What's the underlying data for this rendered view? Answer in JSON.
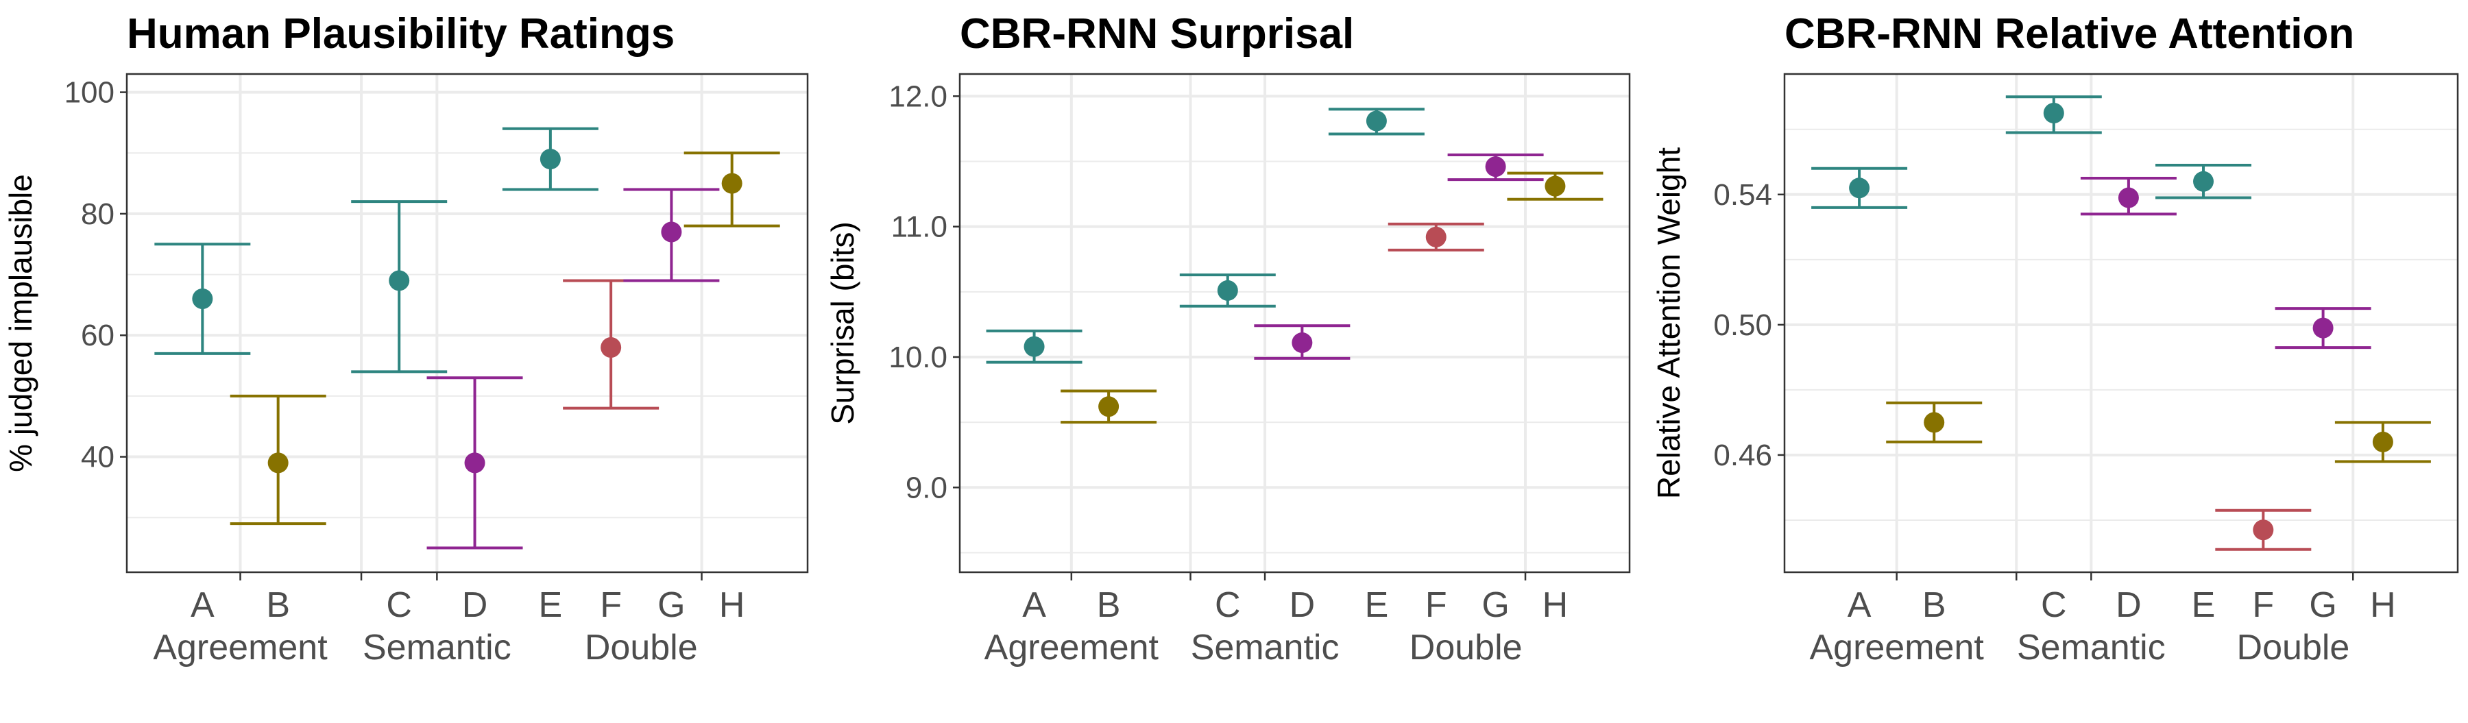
{
  "colors": {
    "A": "#2e8580",
    "B": "#877200",
    "C": "#2e8580",
    "D": "#8f2591",
    "E": "#2e8580",
    "F": "#b84c55",
    "G": "#8f2591",
    "H": "#877200",
    "grid": "#ebebeb",
    "panel_border": "#333333",
    "tick_text": "#4d4d4d"
  },
  "chart_data": [
    {
      "type": "scatter",
      "title": "Human Plausibility Ratings",
      "ylabel": "% judged implausible",
      "ylim": [
        21,
        103
      ],
      "yticks": [
        40,
        60,
        80,
        100
      ],
      "yticklabels": [
        "40",
        "60",
        "80",
        "100"
      ],
      "categories": [
        "A",
        "B",
        "C",
        "D",
        "E",
        "F",
        "G",
        "H"
      ],
      "groups": [
        {
          "label": "Agreement",
          "members": [
            "A",
            "B"
          ]
        },
        {
          "label": "Semantic",
          "members": [
            "C",
            "D"
          ]
        },
        {
          "label": "Double",
          "members": [
            "E",
            "F",
            "G",
            "H"
          ]
        }
      ],
      "points": [
        {
          "category": "A",
          "value": 66,
          "lower": 57,
          "upper": 75
        },
        {
          "category": "B",
          "value": 39,
          "lower": 29,
          "upper": 50
        },
        {
          "category": "C",
          "value": 69,
          "lower": 54,
          "upper": 82
        },
        {
          "category": "D",
          "value": 39,
          "lower": 25,
          "upper": 53
        },
        {
          "category": "E",
          "value": 89,
          "lower": 84,
          "upper": 94
        },
        {
          "category": "F",
          "value": 58,
          "lower": 48,
          "upper": 69
        },
        {
          "category": "G",
          "value": 77,
          "lower": 69,
          "upper": 84
        },
        {
          "category": "H",
          "value": 85,
          "lower": 78,
          "upper": 90
        }
      ],
      "grid": true,
      "legend": "none"
    },
    {
      "type": "scatter",
      "title": "CBR-RNN Surprisal",
      "ylabel": "Surprisal (bits)",
      "ylim": [
        8.35,
        12.17
      ],
      "yticks": [
        9.0,
        10.0,
        11.0,
        12.0
      ],
      "yticklabels": [
        "9.0",
        "10.0",
        "11.0",
        "12.0"
      ],
      "categories": [
        "A",
        "B",
        "C",
        "D",
        "E",
        "F",
        "G",
        "H"
      ],
      "groups": [
        {
          "label": "Agreement",
          "members": [
            "A",
            "B"
          ]
        },
        {
          "label": "Semantic",
          "members": [
            "C",
            "D"
          ]
        },
        {
          "label": "Double",
          "members": [
            "E",
            "F",
            "G",
            "H"
          ]
        }
      ],
      "points": [
        {
          "category": "A",
          "value": 10.08,
          "lower": 9.96,
          "upper": 10.2
        },
        {
          "category": "B",
          "value": 9.62,
          "lower": 9.5,
          "upper": 9.74
        },
        {
          "category": "C",
          "value": 10.51,
          "lower": 10.39,
          "upper": 10.63
        },
        {
          "category": "D",
          "value": 10.11,
          "lower": 9.99,
          "upper": 10.24
        },
        {
          "category": "E",
          "value": 11.81,
          "lower": 11.71,
          "upper": 11.9
        },
        {
          "category": "F",
          "value": 10.92,
          "lower": 10.82,
          "upper": 11.02
        },
        {
          "category": "G",
          "value": 11.46,
          "lower": 11.36,
          "upper": 11.55
        },
        {
          "category": "H",
          "value": 11.31,
          "lower": 11.21,
          "upper": 11.41
        }
      ],
      "grid": true,
      "legend": "none"
    },
    {
      "type": "scatter",
      "title": "CBR-RNN Relative Attention",
      "ylabel": "Relative Attention Weight",
      "ylim": [
        0.424,
        0.577
      ],
      "yticks": [
        0.46,
        0.5,
        0.54
      ],
      "yticklabels": [
        "0.46",
        "0.50",
        "0.54"
      ],
      "categories": [
        "A",
        "B",
        "C",
        "D",
        "E",
        "F",
        "G",
        "H"
      ],
      "groups": [
        {
          "label": "Agreement",
          "members": [
            "A",
            "B"
          ]
        },
        {
          "label": "Semantic",
          "members": [
            "C",
            "D"
          ]
        },
        {
          "label": "Double",
          "members": [
            "E",
            "F",
            "G",
            "H"
          ]
        }
      ],
      "points": [
        {
          "category": "A",
          "value": 0.542,
          "lower": 0.536,
          "upper": 0.548
        },
        {
          "category": "B",
          "value": 0.47,
          "lower": 0.464,
          "upper": 0.476
        },
        {
          "category": "C",
          "value": 0.565,
          "lower": 0.559,
          "upper": 0.57
        },
        {
          "category": "D",
          "value": 0.539,
          "lower": 0.534,
          "upper": 0.545
        },
        {
          "category": "E",
          "value": 0.544,
          "lower": 0.539,
          "upper": 0.549
        },
        {
          "category": "F",
          "value": 0.437,
          "lower": 0.431,
          "upper": 0.443
        },
        {
          "category": "G",
          "value": 0.499,
          "lower": 0.493,
          "upper": 0.505
        },
        {
          "category": "H",
          "value": 0.464,
          "lower": 0.458,
          "upper": 0.47
        }
      ],
      "grid": true,
      "legend": "none"
    }
  ]
}
